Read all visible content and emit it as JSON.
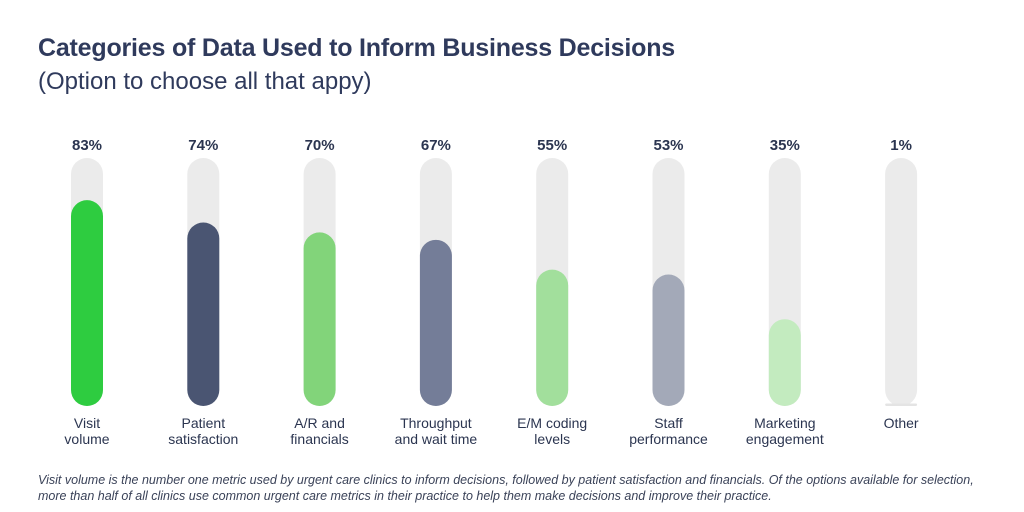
{
  "header": {
    "title": "Categories of Data Used to Inform Business Decisions",
    "subtitle": "(Option to choose all that appy)"
  },
  "chart_data": {
    "type": "bar",
    "orientation": "vertical",
    "title": "Categories of Data Used to Inform Business Decisions",
    "subtitle": "(Option to choose all that appy)",
    "xlabel": "",
    "ylabel": "",
    "ylim": [
      0,
      100
    ],
    "grid": false,
    "categories": [
      [
        "Visit",
        "volume"
      ],
      [
        "Patient",
        "satisfaction"
      ],
      [
        "A/R and",
        "financials"
      ],
      [
        "Throughput",
        "and wait time"
      ],
      [
        "E/M coding",
        "levels"
      ],
      [
        "Staff",
        "performance"
      ],
      [
        "Marketing",
        "engagement"
      ],
      [
        "Other"
      ]
    ],
    "values": [
      83,
      74,
      70,
      67,
      55,
      53,
      35,
      1
    ],
    "value_labels": [
      "83%",
      "74%",
      "70%",
      "67%",
      "55%",
      "53%",
      "35%",
      "1%"
    ],
    "colors": [
      "#2ecc40",
      "#4a5572",
      "#82d47a",
      "#747d98",
      "#a2df9c",
      "#a3a9b8",
      "#c3ebbf",
      "#e4e4e4"
    ],
    "track_color": "#ebebeb"
  },
  "footer": {
    "caption": "Visit volume is the number one metric used by urgent care clinics to inform decisions, followed by patient satisfaction and financials. Of the options available for selection, more than half of all clinics use common urgent care metrics in their practice to help them make decisions and improve their practice."
  }
}
